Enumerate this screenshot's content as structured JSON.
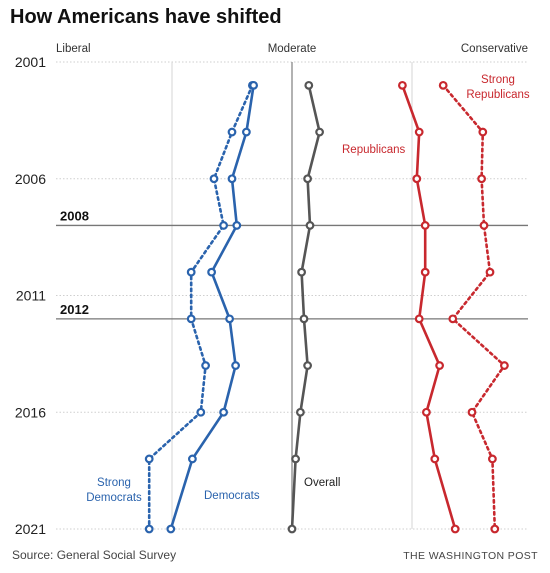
{
  "title": "How Americans have shifted",
  "source": "Source: General Social Survey",
  "credit": "THE WASHINGTON POST",
  "chart_data": {
    "type": "line",
    "orientation": "vertical (x = ideology score, y = year)",
    "x_axis_labels": {
      "left": "Liberal",
      "center": "Moderate",
      "right": "Conservative"
    },
    "xlim": [
      -1.0,
      1.0
    ],
    "ylim": [
      2001,
      2021
    ],
    "y_ticks": [
      2001,
      2006,
      2011,
      2016,
      2021
    ],
    "markers": [
      2008,
      2012
    ],
    "series": [
      {
        "name": "Strong\nDemocrats",
        "color": "#2a63ad",
        "style": "dotted",
        "points": [
          [
            2002,
            -0.33
          ],
          [
            2004,
            -0.5
          ],
          [
            2006,
            -0.65
          ],
          [
            2008,
            -0.57
          ],
          [
            2010,
            -0.84
          ],
          [
            2012,
            -0.84
          ],
          [
            2014,
            -0.72
          ],
          [
            2016,
            -0.76
          ],
          [
            2018,
            -1.19
          ],
          [
            2021,
            -1.19
          ]
        ]
      },
      {
        "name": "Democrats",
        "color": "#2a63ad",
        "style": "solid",
        "points": [
          [
            2002,
            -0.32
          ],
          [
            2004,
            -0.38
          ],
          [
            2006,
            -0.5
          ],
          [
            2008,
            -0.46
          ],
          [
            2010,
            -0.67
          ],
          [
            2012,
            -0.52
          ],
          [
            2014,
            -0.47
          ],
          [
            2016,
            -0.57
          ],
          [
            2018,
            -0.83
          ],
          [
            2021,
            -1.01
          ]
        ]
      },
      {
        "name": "Overall",
        "color": "#555555",
        "style": "solid",
        "points": [
          [
            2002,
            0.14
          ],
          [
            2004,
            0.23
          ],
          [
            2006,
            0.13
          ],
          [
            2008,
            0.15
          ],
          [
            2010,
            0.08
          ],
          [
            2012,
            0.1
          ],
          [
            2014,
            0.13
          ],
          [
            2016,
            0.07
          ],
          [
            2018,
            0.03
          ],
          [
            2021,
            0.0
          ]
        ]
      },
      {
        "name": "Republicans",
        "color": "#c8282e",
        "style": "solid",
        "points": [
          [
            2002,
            0.92
          ],
          [
            2004,
            1.06
          ],
          [
            2006,
            1.04
          ],
          [
            2008,
            1.11
          ],
          [
            2010,
            1.11
          ],
          [
            2012,
            1.06
          ],
          [
            2014,
            1.23
          ],
          [
            2016,
            1.12
          ],
          [
            2018,
            1.19
          ],
          [
            2021,
            1.36
          ]
        ]
      },
      {
        "name": "Strong\nRepublicans",
        "color": "#c8282e",
        "style": "dotted",
        "points": [
          [
            2002,
            1.26
          ],
          [
            2004,
            1.59
          ],
          [
            2006,
            1.58
          ],
          [
            2008,
            1.6
          ],
          [
            2010,
            1.65
          ],
          [
            2012,
            1.34
          ],
          [
            2014,
            1.77
          ],
          [
            2016,
            1.5
          ],
          [
            2018,
            1.67
          ],
          [
            2021,
            1.69
          ]
        ]
      }
    ]
  }
}
